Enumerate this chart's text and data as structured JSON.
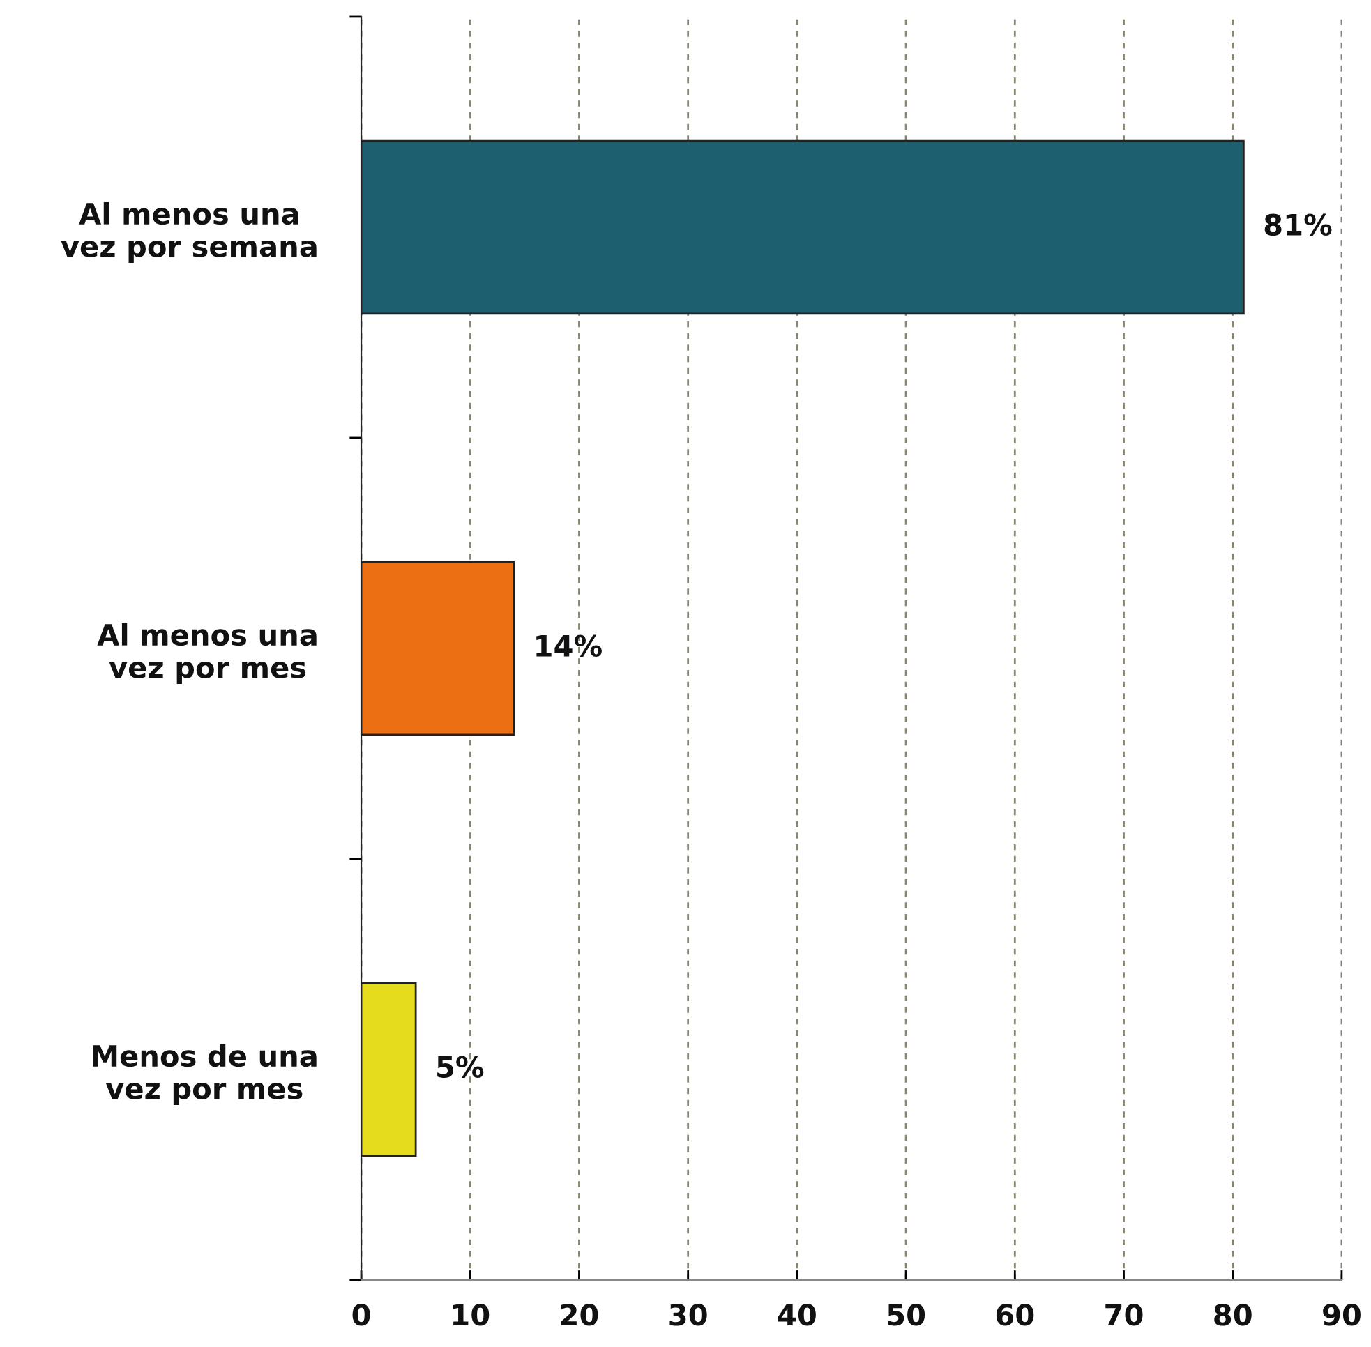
{
  "chart_data": {
    "type": "bar",
    "orientation": "horizontal",
    "categories": [
      "Al menos una\nvez por semana",
      "Al menos una\nvez por mes",
      "Menos de una\nvez por mes"
    ],
    "values": [
      81,
      14,
      5
    ],
    "colors": [
      "#1d5f6f",
      "#ec6f14",
      "#e6dc1e"
    ],
    "value_labels": [
      "81%",
      "14%",
      "5%"
    ],
    "xlim": [
      0,
      90
    ],
    "xticks": [
      0,
      10,
      20,
      30,
      40,
      50,
      60,
      70,
      80,
      90
    ],
    "grid": "x",
    "legend": false
  }
}
